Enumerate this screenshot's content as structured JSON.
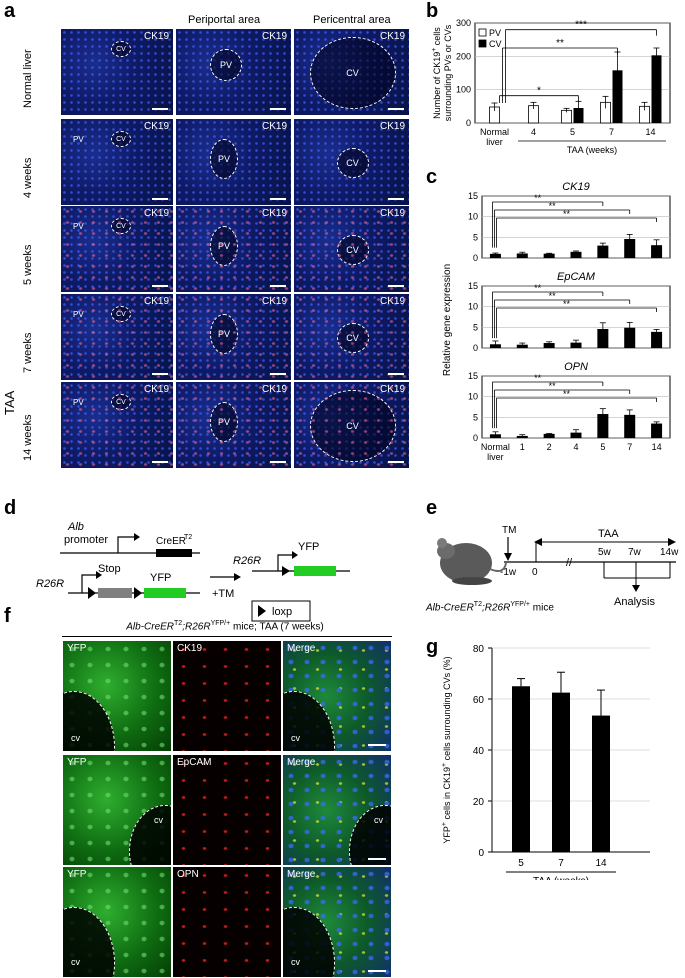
{
  "panel_labels": {
    "a": "a",
    "b": "b",
    "c": "c",
    "d": "d",
    "e": "e",
    "f": "f",
    "g": "g"
  },
  "panel_a": {
    "col_titles": [
      "Periportal area",
      "Pericentral area"
    ],
    "stain": "CK19",
    "group": "TAA",
    "rows": [
      "Normal liver",
      "4 weeks",
      "5 weeks",
      "7 weeks",
      "14 weeks"
    ],
    "vessels": {
      "cv": "CV",
      "pv": "PV",
      "cv_lc": "cv",
      "pv_lc": "pv"
    }
  },
  "chart_data": [
    {
      "id": "b",
      "type": "bar",
      "ylabel": "Number of CK19+ cells surrounding PVs or CVs",
      "ylabel_lines": [
        "Number of CK19",
        "+",
        " cells",
        "surrounding PVs or CVs"
      ],
      "categories": [
        "Normal liver",
        "4",
        "5",
        "7",
        "14"
      ],
      "xlabel": "TAA (weeks)",
      "ylim": [
        0,
        300
      ],
      "yticks": [
        "0",
        "100",
        "200",
        "300"
      ],
      "series": [
        {
          "name": "PV",
          "color": "#ffffff",
          "values": [
            48,
            52,
            38,
            62,
            50
          ],
          "err": [
            12,
            10,
            6,
            18,
            12
          ]
        },
        {
          "name": "CV",
          "color": "#000000",
          "values": [
            null,
            null,
            45,
            158,
            203
          ],
          "err": [
            null,
            null,
            20,
            55,
            22
          ]
        }
      ],
      "significance": [
        "*",
        "**",
        "***"
      ],
      "legend_position": "top-left"
    },
    {
      "id": "c",
      "type": "bar",
      "ylabel": "Relative gene expression",
      "xlabel": "",
      "categories": [
        "Normal liver",
        "1",
        "2",
        "4",
        "5",
        "7",
        "14"
      ],
      "panels": [
        {
          "title": "CK19",
          "ylim": [
            0,
            15
          ],
          "yticks": [
            "0",
            "5",
            "10",
            "15"
          ],
          "values": [
            1.0,
            1.1,
            1.05,
            1.5,
            3.0,
            4.6,
            3.1
          ],
          "err": [
            0.2,
            0.3,
            0.1,
            0.2,
            0.6,
            1.1,
            1.3
          ],
          "significance": [
            "**",
            "**",
            "**"
          ]
        },
        {
          "title": "EpCAM",
          "ylim": [
            0,
            15
          ],
          "yticks": [
            "0",
            "5",
            "10",
            "15"
          ],
          "values": [
            0.9,
            0.8,
            1.2,
            1.3,
            4.6,
            4.9,
            3.9
          ],
          "err": [
            0.8,
            0.4,
            0.3,
            0.6,
            1.5,
            1.3,
            0.6
          ],
          "significance": [
            "**",
            "**",
            "**"
          ]
        },
        {
          "title": "OPN",
          "ylim": [
            0,
            15
          ],
          "yticks": [
            "0",
            "5",
            "10",
            "15"
          ],
          "values": [
            0.9,
            0.5,
            1.0,
            1.3,
            5.8,
            5.6,
            3.5
          ],
          "err": [
            0.6,
            0.3,
            0.1,
            0.7,
            1.3,
            1.2,
            0.4
          ],
          "significance": [
            "**",
            "**",
            "**"
          ]
        }
      ]
    },
    {
      "id": "g",
      "type": "bar",
      "ylabel": "YFP+ cells in CK19+ cells surrounding CVs (%)",
      "ylabel_parts": [
        "YFP",
        "+",
        " cells in CK19",
        "+",
        " cells surrounding CVs (%)"
      ],
      "categories": [
        "5",
        "7",
        "14"
      ],
      "xlabel": "TAA (weeks)",
      "ylim": [
        0,
        80
      ],
      "yticks": [
        "0",
        "20",
        "40",
        "60",
        "80"
      ],
      "series": [
        {
          "name": "",
          "color": "#000000",
          "values": [
            65,
            62.5,
            53.5
          ],
          "err": [
            3,
            8,
            10
          ]
        }
      ]
    }
  ],
  "panel_d": {
    "alb": "Alb",
    "promoter": "promoter",
    "creer": "CreER",
    "creer_sup": "T2",
    "r26r": "R26R",
    "stop": "Stop",
    "yfp": "YFP",
    "tm": "+TM",
    "loxp": "loxp",
    "colors": {
      "yfp": "#22cc22",
      "stop": "#808080",
      "cre": "#000000"
    }
  },
  "panel_e": {
    "tm": "TM",
    "taa": "TAA",
    "t_minus1": "-1w",
    "t0": "0",
    "t5": "5w",
    "t7": "7w",
    "t14": "14w",
    "analysis": "Analysis",
    "mice": [
      "Alb-CreER",
      "T2",
      ";R26R",
      "YFP/+",
      " mice"
    ]
  },
  "panel_f": {
    "title_parts": [
      "Alb-CreER",
      "T2",
      ";R26R",
      "YFP/+",
      " mice; TAA (7 weeks)"
    ],
    "rows": [
      {
        "labels": [
          "YFP",
          "CK19",
          "Merge"
        ]
      },
      {
        "labels": [
          "YFP",
          "EpCAM",
          "Merge"
        ]
      },
      {
        "labels": [
          "YFP",
          "OPN",
          "Merge"
        ]
      }
    ],
    "cv": "cv"
  }
}
